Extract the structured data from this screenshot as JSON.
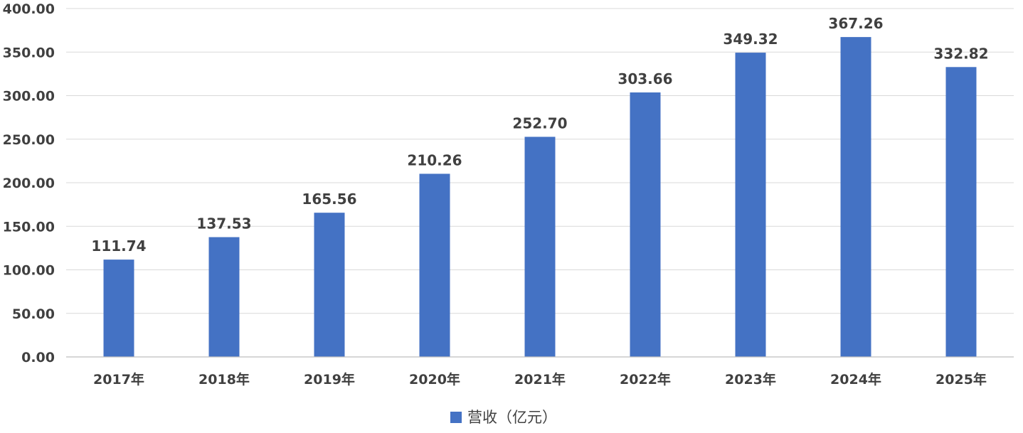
{
  "chart_data": {
    "type": "bar",
    "categories": [
      "2017年",
      "2018年",
      "2019年",
      "2020年",
      "2021年",
      "2022年",
      "2023年",
      "2024年",
      "2025年"
    ],
    "series": [
      {
        "name": "营收（亿元）",
        "values": [
          111.74,
          137.53,
          165.56,
          210.26,
          252.7,
          303.66,
          349.32,
          367.26,
          332.82
        ],
        "labels": [
          "111.74",
          "137.53",
          "165.56",
          "210.26",
          "252.70",
          "303.66",
          "349.32",
          "367.26",
          "332.82"
        ],
        "color": "#4472c4"
      }
    ],
    "ylim": [
      0,
      400
    ],
    "yticks": [
      "0.00",
      "50.00",
      "100.00",
      "150.00",
      "200.00",
      "250.00",
      "300.00",
      "350.00",
      "400.00"
    ],
    "grid": true,
    "legend": "bottom-center",
    "title": "",
    "xlabel": "",
    "ylabel": ""
  }
}
